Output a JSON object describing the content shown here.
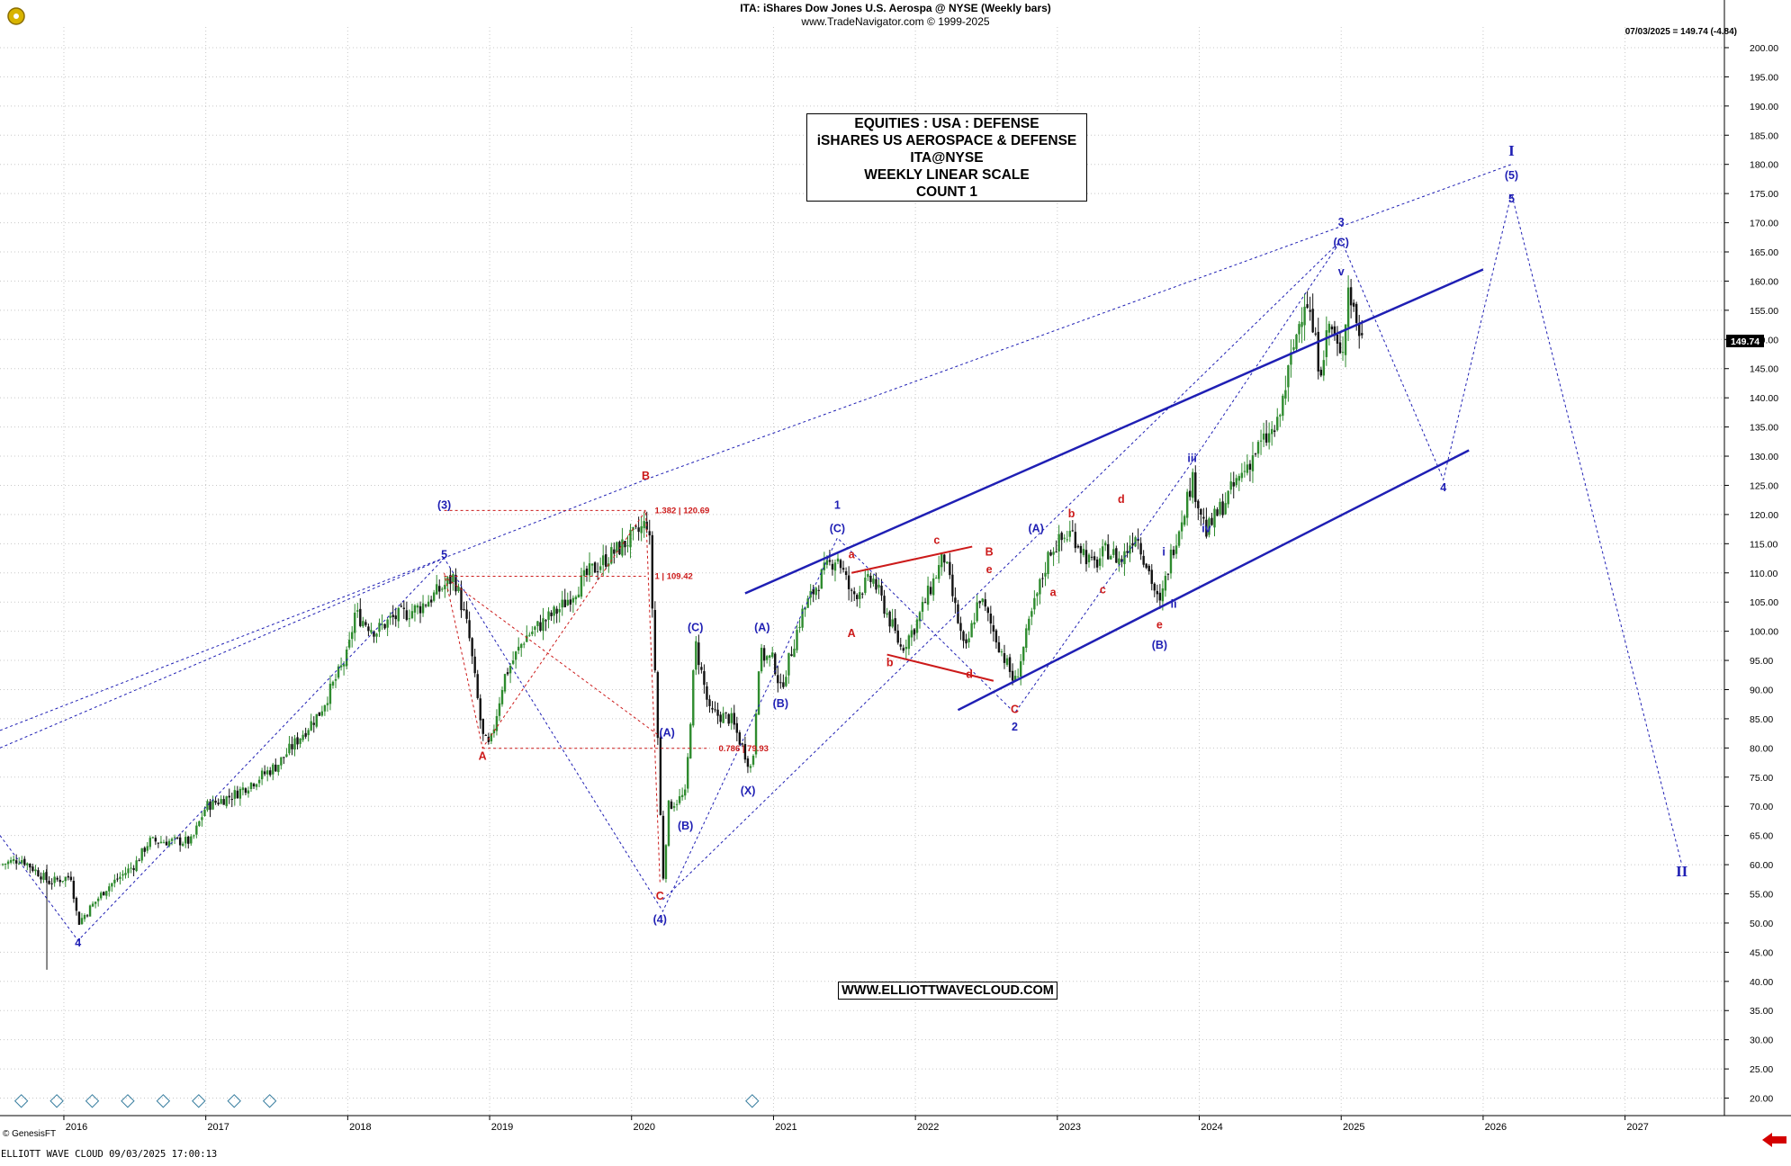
{
  "header": {
    "title": "ITA:  iShares Dow Jones U.S. Aerospa @ NYSE  (Weekly bars)",
    "copyright": "www.TradeNavigator.com © 1999-2025",
    "last_quote": "07/03/2025 = 149.74 (-4.84)"
  },
  "info_box": {
    "line1": "EQUITIES : USA : DEFENSE",
    "line2": "iSHARES US AEROSPACE & DEFENSE",
    "line3": "ITA@NYSE",
    "line4": "WEEKLY LINEAR SCALE",
    "line5": "COUNT 1"
  },
  "website": "WWW.ELLIOTTWAVECLOUD.COM",
  "footer": {
    "left": "ELLIOTT WAVE CLOUD   09/03/2025 17:00:13",
    "data_source": "© GenesisFT"
  },
  "colors": {
    "wave_blue": "#1f1fb4",
    "corrective_red": "#cc1a1a",
    "up_candle": "#2e8b2e",
    "down_candle": "#111111",
    "grid": "#c8c8c8",
    "last_price_bg": "#000000"
  },
  "chart_data": {
    "type": "candlestick",
    "title": "ITA:  iShares Dow Jones U.S. Aerospa @ NYSE  (Weekly bars)",
    "scale": "linear",
    "x_axis": {
      "ticks": [
        "2016",
        "2017",
        "2018",
        "2019",
        "2020",
        "2021",
        "2022",
        "2023",
        "2024",
        "2025",
        "2026",
        "2027"
      ],
      "range": [
        2015.55,
        2027.7
      ]
    },
    "y_axis": {
      "ticks": [
        "20.00",
        "25.00",
        "30.00",
        "35.00",
        "40.00",
        "45.00",
        "50.00",
        "55.00",
        "60.00",
        "65.00",
        "70.00",
        "75.00",
        "80.00",
        "85.00",
        "90.00",
        "95.00",
        "100.00",
        "105.00",
        "110.00",
        "115.00",
        "120.00",
        "125.00",
        "130.00",
        "135.00",
        "140.00",
        "145.00",
        "150.00",
        "155.00",
        "160.00",
        "165.00",
        "170.00",
        "175.00",
        "180.00",
        "185.00",
        "190.00",
        "195.00",
        "200.00"
      ],
      "range": [
        17,
        202
      ],
      "side": "right"
    },
    "last_price": {
      "value": 149.74,
      "label": "149.74"
    },
    "grid": true,
    "price_path": [
      [
        2015.55,
        60
      ],
      [
        2015.7,
        61
      ],
      [
        2015.9,
        57
      ],
      [
        2016.05,
        58
      ],
      [
        2016.1,
        50
      ],
      [
        2016.3,
        56
      ],
      [
        2016.5,
        60
      ],
      [
        2016.6,
        64
      ],
      [
        2016.9,
        64
      ],
      [
        2017.0,
        70
      ],
      [
        2017.2,
        72
      ],
      [
        2017.5,
        77
      ],
      [
        2017.8,
        86
      ],
      [
        2018.0,
        96
      ],
      [
        2018.05,
        103
      ],
      [
        2018.2,
        100
      ],
      [
        2018.3,
        102
      ],
      [
        2018.5,
        104
      ],
      [
        2018.6,
        106
      ],
      [
        2018.75,
        109.4
      ],
      [
        2018.85,
        100
      ],
      [
        2018.95,
        82
      ],
      [
        2019.0,
        80
      ],
      [
        2019.1,
        92
      ],
      [
        2019.25,
        99
      ],
      [
        2019.5,
        104
      ],
      [
        2019.7,
        110
      ],
      [
        2019.9,
        114
      ],
      [
        2020.05,
        117
      ],
      [
        2020.12,
        119
      ],
      [
        2020.18,
        85
      ],
      [
        2020.22,
        57
      ],
      [
        2020.26,
        70
      ],
      [
        2020.38,
        72
      ],
      [
        2020.45,
        98
      ],
      [
        2020.55,
        86
      ],
      [
        2020.7,
        85
      ],
      [
        2020.85,
        76
      ],
      [
        2020.9,
        96
      ],
      [
        2021.0,
        95
      ],
      [
        2021.05,
        90
      ],
      [
        2021.2,
        103
      ],
      [
        2021.35,
        110
      ],
      [
        2021.45,
        113
      ],
      [
        2021.55,
        106
      ],
      [
        2021.7,
        109
      ],
      [
        2021.9,
        97
      ],
      [
        2022.0,
        101
      ],
      [
        2022.15,
        110
      ],
      [
        2022.2,
        113
      ],
      [
        2022.35,
        96
      ],
      [
        2022.45,
        106
      ],
      [
        2022.6,
        97
      ],
      [
        2022.7,
        91
      ],
      [
        2022.82,
        103
      ],
      [
        2022.95,
        114
      ],
      [
        2023.1,
        117
      ],
      [
        2023.25,
        111
      ],
      [
        2023.35,
        114
      ],
      [
        2023.45,
        112
      ],
      [
        2023.55,
        117
      ],
      [
        2023.65,
        110
      ],
      [
        2023.72,
        104
      ],
      [
        2023.8,
        113
      ],
      [
        2023.95,
        126
      ],
      [
        2024.05,
        117
      ],
      [
        2024.25,
        125
      ],
      [
        2024.4,
        131
      ],
      [
        2024.55,
        135
      ],
      [
        2024.65,
        147
      ],
      [
        2024.75,
        158
      ],
      [
        2024.85,
        145
      ],
      [
        2024.92,
        153
      ],
      [
        2025.0,
        146
      ],
      [
        2025.05,
        159
      ],
      [
        2025.12,
        152
      ],
      [
        2025.15,
        149.74
      ]
    ],
    "wave_labels": [
      {
        "text": "4",
        "x": 2016.1,
        "y": 46,
        "color": "blue"
      },
      {
        "text": "5",
        "x": 2018.68,
        "y": 112.5,
        "color": "blue"
      },
      {
        "text": "(3)",
        "x": 2018.68,
        "y": 121,
        "color": "blue"
      },
      {
        "text": "A",
        "x": 2018.95,
        "y": 78,
        "color": "red"
      },
      {
        "text": "B",
        "x": 2020.1,
        "y": 126,
        "color": "red"
      },
      {
        "text": "C",
        "x": 2020.2,
        "y": 54,
        "color": "red"
      },
      {
        "text": "(4)",
        "x": 2020.2,
        "y": 50,
        "color": "blue"
      },
      {
        "text": "(A)",
        "x": 2020.25,
        "y": 82,
        "color": "blue"
      },
      {
        "text": "(B)",
        "x": 2020.38,
        "y": 66,
        "color": "blue"
      },
      {
        "text": "(C)",
        "x": 2020.45,
        "y": 100,
        "color": "blue"
      },
      {
        "text": "(X)",
        "x": 2020.82,
        "y": 72,
        "color": "blue"
      },
      {
        "text": "(A)",
        "x": 2020.92,
        "y": 100,
        "color": "blue"
      },
      {
        "text": "(B)",
        "x": 2021.05,
        "y": 87,
        "color": "blue"
      },
      {
        "text": "1",
        "x": 2021.45,
        "y": 121,
        "color": "blue"
      },
      {
        "text": "(C)",
        "x": 2021.45,
        "y": 117,
        "color": "blue"
      },
      {
        "text": "a",
        "x": 2021.55,
        "y": 112.5,
        "color": "red"
      },
      {
        "text": "A",
        "x": 2021.55,
        "y": 99,
        "color": "red"
      },
      {
        "text": "b",
        "x": 2021.82,
        "y": 94,
        "color": "red"
      },
      {
        "text": "c",
        "x": 2022.15,
        "y": 115,
        "color": "red"
      },
      {
        "text": "d",
        "x": 2022.38,
        "y": 92,
        "color": "red"
      },
      {
        "text": "B",
        "x": 2022.52,
        "y": 113,
        "color": "red"
      },
      {
        "text": "e",
        "x": 2022.52,
        "y": 110,
        "color": "red"
      },
      {
        "text": "C",
        "x": 2022.7,
        "y": 86,
        "color": "red"
      },
      {
        "text": "2",
        "x": 2022.7,
        "y": 83,
        "color": "blue"
      },
      {
        "text": "(A)",
        "x": 2022.85,
        "y": 117,
        "color": "blue"
      },
      {
        "text": "a",
        "x": 2022.97,
        "y": 106,
        "color": "red"
      },
      {
        "text": "b",
        "x": 2023.1,
        "y": 119.5,
        "color": "red"
      },
      {
        "text": "c",
        "x": 2023.32,
        "y": 106.5,
        "color": "red"
      },
      {
        "text": "d",
        "x": 2023.45,
        "y": 122,
        "color": "red"
      },
      {
        "text": "e",
        "x": 2023.72,
        "y": 100.5,
        "color": "red"
      },
      {
        "text": "(B)",
        "x": 2023.72,
        "y": 97,
        "color": "blue"
      },
      {
        "text": "i",
        "x": 2023.75,
        "y": 113,
        "color": "blue"
      },
      {
        "text": "ii",
        "x": 2023.82,
        "y": 104,
        "color": "blue"
      },
      {
        "text": "iii",
        "x": 2023.95,
        "y": 129,
        "color": "blue"
      },
      {
        "text": "iv",
        "x": 2024.05,
        "y": 117,
        "color": "blue"
      },
      {
        "text": "v",
        "x": 2025.0,
        "y": 161,
        "color": "blue"
      },
      {
        "text": "(C)",
        "x": 2025.0,
        "y": 166,
        "color": "blue"
      },
      {
        "text": "3",
        "x": 2025.0,
        "y": 169.5,
        "color": "blue"
      },
      {
        "text": "4",
        "x": 2025.72,
        "y": 124,
        "color": "blue"
      },
      {
        "text": "5",
        "x": 2026.2,
        "y": 173.5,
        "color": "blue"
      },
      {
        "text": "(5)",
        "x": 2026.2,
        "y": 177.5,
        "color": "blue"
      },
      {
        "text": "I",
        "x": 2026.2,
        "y": 181.5,
        "color": "blue"
      },
      {
        "text": "II",
        "x": 2027.4,
        "y": 58,
        "color": "blue"
      }
    ],
    "fib_levels": [
      {
        "label": "1.382 | 120.69",
        "value": 120.69,
        "x_start": 2018.68,
        "x_end": 2020.1
      },
      {
        "label": "1 | 109.42",
        "value": 109.42,
        "x_start": 2018.68,
        "x_end": 2020.1
      },
      {
        "label": "0.786 | 79.93",
        "value": 79.93,
        "x_start": 2018.95,
        "x_end": 2020.55
      }
    ],
    "channels": [
      {
        "style": "solid",
        "points": [
          [
            2020.8,
            106.5
          ],
          [
            2026.0,
            162
          ]
        ]
      },
      {
        "style": "solid",
        "points": [
          [
            2022.3,
            86.5
          ],
          [
            2025.9,
            131
          ]
        ]
      }
    ],
    "triangle_lines": [
      {
        "style": "solid",
        "color": "red",
        "points": [
          [
            2021.55,
            110
          ],
          [
            2022.4,
            114.5
          ]
        ]
      },
      {
        "style": "solid",
        "color": "red",
        "points": [
          [
            2021.8,
            96
          ],
          [
            2022.55,
            91.5
          ]
        ]
      }
    ],
    "wave_path_projection": [
      [
        2025.0,
        167
      ],
      [
        2025.72,
        126
      ],
      [
        2026.2,
        175
      ],
      [
        2027.4,
        60
      ]
    ],
    "cycle_markers": {
      "x": [
        2015.7,
        2015.95,
        2016.2,
        2016.45,
        2016.7,
        2016.95,
        2017.2,
        2017.45,
        2020.85
      ],
      "y": 19.5
    }
  }
}
